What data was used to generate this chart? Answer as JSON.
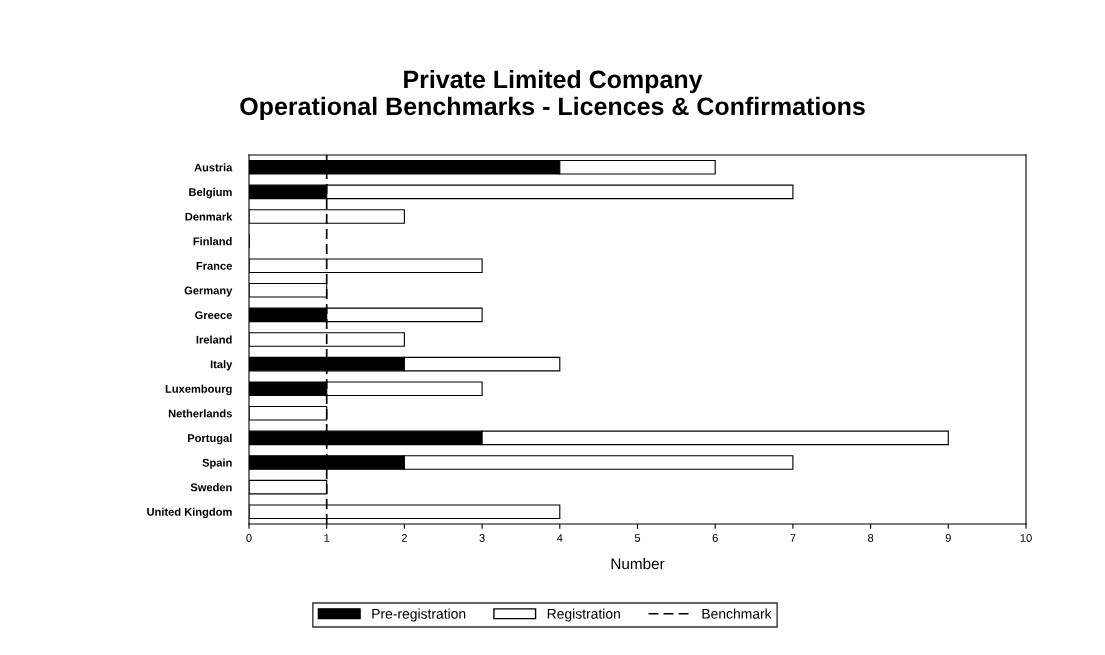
{
  "chart_data": {
    "type": "bar",
    "title": "Private Limited Company\nOperational Benchmarks - Licences & Confirmations",
    "categories": [
      "Austria",
      "Belgium",
      "Denmark",
      "Finland",
      "France",
      "Germany",
      "Greece",
      "Ireland",
      "Italy",
      "Luxembourg",
      "Netherlands",
      "Portugal",
      "Spain",
      "Sweden",
      "United Kingdom"
    ],
    "orientation": "horizontal",
    "stacked": true,
    "series": [
      {
        "name": "Pre-registration",
        "color": "#000000",
        "values": [
          4,
          1,
          0,
          0,
          0,
          0,
          1,
          0,
          2,
          1,
          0,
          3,
          2,
          0,
          0
        ]
      },
      {
        "name": "Registration",
        "color": "#ffffff",
        "values": [
          2,
          6,
          2,
          0,
          3,
          1,
          2,
          2,
          2,
          2,
          1,
          6,
          5,
          1,
          4
        ]
      }
    ],
    "ref_lines": [
      {
        "axis": "x",
        "value": 1,
        "label": "Benchmark",
        "color": "#000000",
        "line_style": "dashed"
      }
    ],
    "xlabel": "Number",
    "xlim": [
      0,
      10
    ],
    "xticks": [
      0,
      1,
      2,
      3,
      4,
      5,
      6,
      7,
      8,
      9,
      10
    ],
    "grid": false,
    "legend": "bottom"
  }
}
